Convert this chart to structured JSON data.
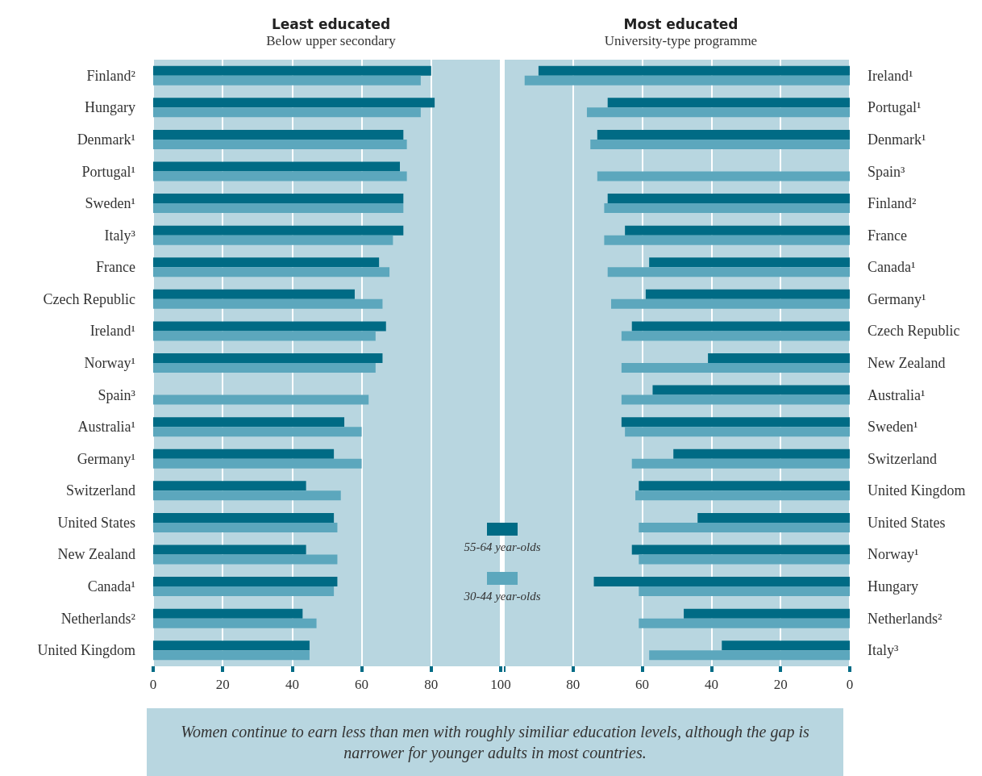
{
  "chart_data": [
    {
      "type": "bar",
      "orientation": "horizontal",
      "title": "Least educated",
      "subtitle": "Below upper secondary",
      "categories": [
        "Finland²",
        "Hungary",
        "Denmark¹",
        "Portugal¹",
        "Sweden¹",
        "Italy³",
        "France",
        "Czech Republic",
        "Ireland¹",
        "Norway¹",
        "Spain³",
        "Australia¹",
        "Germany¹",
        "Switzerland",
        "United States",
        "New Zealand",
        "Canada¹",
        "Netherlands²",
        "United Kingdom"
      ],
      "series": [
        {
          "name": "55-64 year-olds",
          "color": "#006b85",
          "values": [
            80,
            81,
            72,
            71,
            72,
            72,
            65,
            58,
            67,
            66,
            null,
            55,
            52,
            44,
            52,
            44,
            53,
            43,
            45
          ]
        },
        {
          "name": "30-44 year-olds",
          "color": "#5ca7bd",
          "values": [
            77,
            77,
            73,
            73,
            72,
            69,
            68,
            66,
            64,
            64,
            62,
            60,
            60,
            54,
            53,
            53,
            52,
            47,
            45
          ]
        }
      ],
      "xlim": [
        0,
        100
      ],
      "xticks": [
        0,
        20,
        40,
        60,
        80,
        100
      ],
      "grid": "x",
      "legend": "bottom right",
      "annotations": [
        "Women continue to earn less than men with roughly similiar education levels, although the gap is narrower for younger adults in most countries."
      ]
    },
    {
      "type": "bar",
      "orientation": "horizontal",
      "title": "Most educated",
      "subtitle": "University-type programme",
      "categories": [
        "Ireland¹",
        "Portugal¹",
        "Denmark¹",
        "Spain³",
        "Finland²",
        "France",
        "Canada¹",
        "Germany¹",
        "Czech Republic",
        "New Zealand",
        "Australia¹",
        "Sweden¹",
        "Switzerland",
        "United Kingdom",
        "United States",
        "Norway¹",
        "Hungary",
        "Netherlands²",
        "Italy³"
      ],
      "series": [
        {
          "color": "#006b85",
          "values": [
            90,
            70,
            73,
            null,
            70,
            65,
            58,
            59,
            63,
            41,
            57,
            66,
            51,
            61,
            44,
            63,
            74,
            48,
            37
          ]
        },
        {
          "color": "#5ca7bd",
          "values": [
            94,
            76,
            75,
            73,
            71,
            71,
            70,
            69,
            66,
            66,
            66,
            65,
            63,
            62,
            61,
            61,
            61,
            61,
            58
          ]
        }
      ],
      "xlim": [
        100,
        0
      ],
      "xticks": [
        {
          "value": 100,
          "label": null
        },
        80,
        60,
        40,
        20,
        0
      ],
      "grid": "x"
    }
  ]
}
